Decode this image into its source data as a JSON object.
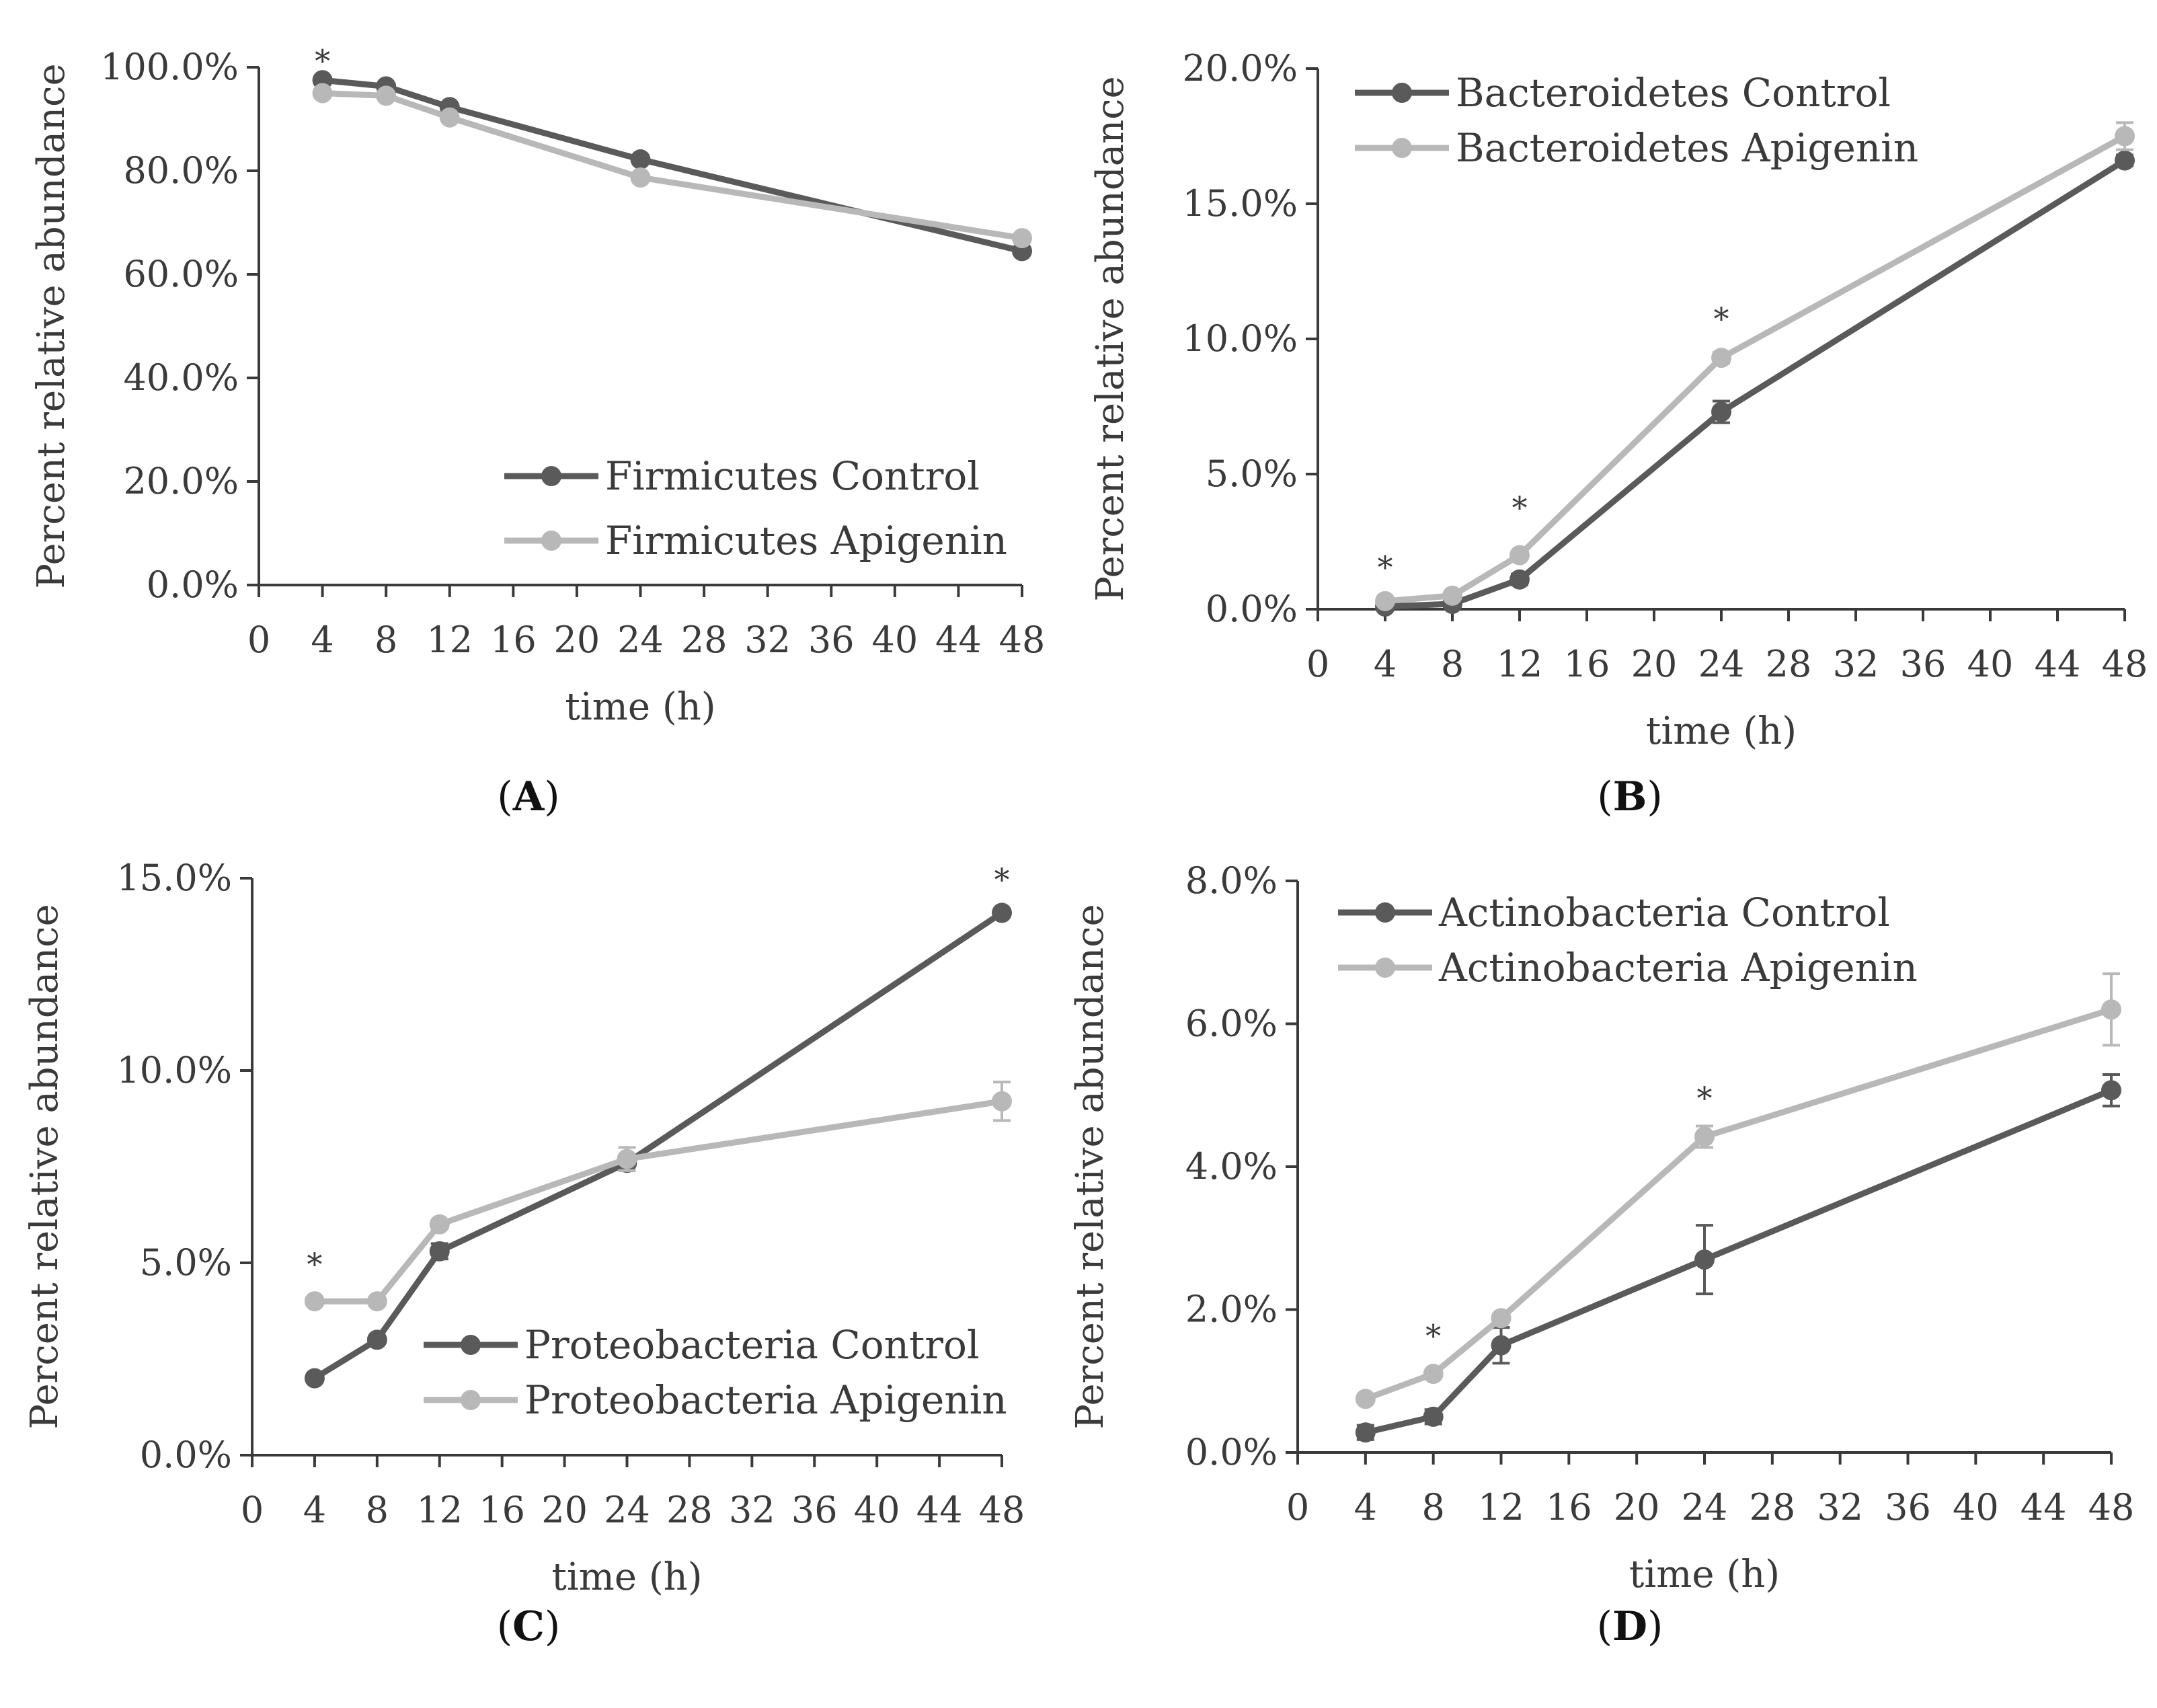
{
  "chart_data": [
    {
      "type": "line",
      "panel": "A",
      "panel_label": "A",
      "xlabel": "time (h)",
      "ylabel": "Percent relative abundance",
      "xlim": [
        0,
        48
      ],
      "xticks": [
        0,
        4,
        8,
        12,
        16,
        20,
        24,
        28,
        32,
        36,
        40,
        44,
        48
      ],
      "ylim": [
        0,
        100
      ],
      "yticks": [
        0,
        20,
        40,
        60,
        80,
        100
      ],
      "ytick_labels": [
        "0.0%",
        "20.0%",
        "40.0%",
        "60.0%",
        "80.0%",
        "100.0%"
      ],
      "legend_position": "bottom-right",
      "grid": false,
      "x": [
        4,
        8,
        12,
        24,
        48
      ],
      "series": [
        {
          "name": "Firmicutes Control",
          "color": "#5a5a5a",
          "values": [
            97.5,
            96.3,
            92.3,
            82.2,
            64.5
          ],
          "errors": [
            0.5,
            0.5,
            0.5,
            0.5,
            0.5
          ]
        },
        {
          "name": "Firmicutes Apigenin",
          "color": "#b8b8b8",
          "values": [
            95.0,
            94.5,
            90.3,
            78.7,
            67.0
          ],
          "errors": [
            0.5,
            0.5,
            0.5,
            0.5,
            0.5
          ]
        }
      ],
      "significance": [
        {
          "x": 4,
          "y": 101.5,
          "label": "*"
        }
      ]
    },
    {
      "type": "line",
      "panel": "B",
      "panel_label": "B",
      "xlabel": "time (h)",
      "ylabel": "Percent relative abundance",
      "xlim": [
        0,
        48
      ],
      "xticks": [
        0,
        4,
        8,
        12,
        16,
        20,
        24,
        28,
        32,
        36,
        40,
        44,
        48
      ],
      "ylim": [
        0,
        20
      ],
      "yticks": [
        0,
        5,
        10,
        15,
        20
      ],
      "ytick_labels": [
        "0.0%",
        "5.0%",
        "10.0%",
        "15.0%",
        "20.0%"
      ],
      "legend_position": "top-left",
      "grid": false,
      "x": [
        4,
        8,
        12,
        24,
        48
      ],
      "series": [
        {
          "name": "Bacteroidetes Control",
          "color": "#5a5a5a",
          "values": [
            0.1,
            0.2,
            1.1,
            7.3,
            16.6
          ],
          "errors": [
            0.05,
            0.05,
            0.2,
            0.4,
            0.2
          ]
        },
        {
          "name": "Bacteroidetes Apigenin",
          "color": "#b8b8b8",
          "values": [
            0.3,
            0.5,
            2.0,
            9.3,
            17.5
          ],
          "errors": [
            0.05,
            0.05,
            0.1,
            0.2,
            0.5
          ]
        }
      ],
      "significance": [
        {
          "x": 4,
          "y": 1.6,
          "label": "*"
        },
        {
          "x": 12,
          "y": 3.8,
          "label": "*"
        },
        {
          "x": 24,
          "y": 10.8,
          "label": "*"
        }
      ]
    },
    {
      "type": "line",
      "panel": "C",
      "panel_label": "C",
      "xlabel": "time (h)",
      "ylabel": "Percent relative abundance",
      "xlim": [
        0,
        48
      ],
      "xticks": [
        0,
        4,
        8,
        12,
        16,
        20,
        24,
        28,
        32,
        36,
        40,
        44,
        48
      ],
      "ylim": [
        0,
        15
      ],
      "yticks": [
        0,
        5,
        10,
        15
      ],
      "ytick_labels": [
        "0.0%",
        "5.0%",
        "10.0%",
        "15.0%"
      ],
      "legend_position": "bottom-right",
      "grid": false,
      "x": [
        4,
        8,
        12,
        24,
        48
      ],
      "series": [
        {
          "name": "Proteobacteria Control",
          "color": "#5a5a5a",
          "values": [
            2.0,
            3.0,
            5.3,
            7.6,
            14.1
          ],
          "errors": [
            0.1,
            0.1,
            0.2,
            0.2,
            0.1
          ]
        },
        {
          "name": "Proteobacteria Apigenin",
          "color": "#b8b8b8",
          "values": [
            4.0,
            4.0,
            6.0,
            7.7,
            9.2
          ],
          "errors": [
            0.1,
            0.1,
            0.1,
            0.3,
            0.5
          ]
        }
      ],
      "significance": [
        {
          "x": 4,
          "y": 5.0,
          "label": "*"
        },
        {
          "x": 48,
          "y": 15.0,
          "label": "*"
        }
      ]
    },
    {
      "type": "line",
      "panel": "D",
      "panel_label": "D",
      "xlabel": "time (h)",
      "ylabel": "Percent relative abundance",
      "xlim": [
        0,
        48
      ],
      "xticks": [
        0,
        4,
        8,
        12,
        16,
        20,
        24,
        28,
        32,
        36,
        40,
        44,
        48
      ],
      "ylim": [
        0,
        8
      ],
      "yticks": [
        0,
        2,
        4,
        6,
        8
      ],
      "ytick_labels": [
        "0.0%",
        "2.0%",
        "4.0%",
        "6.0%",
        "8.0%"
      ],
      "legend_position": "top-left",
      "grid": false,
      "x": [
        4,
        8,
        12,
        24,
        48
      ],
      "series": [
        {
          "name": "Actinobacteria Control",
          "color": "#5a5a5a",
          "values": [
            0.28,
            0.5,
            1.5,
            2.7,
            5.07
          ],
          "errors": [
            0.1,
            0.1,
            0.25,
            0.48,
            0.22
          ]
        },
        {
          "name": "Actinobacteria Apigenin",
          "color": "#b8b8b8",
          "values": [
            0.75,
            1.1,
            1.88,
            4.42,
            6.2
          ],
          "errors": [
            0.05,
            0.05,
            0.05,
            0.15,
            0.5
          ]
        }
      ],
      "significance": [
        {
          "x": 8,
          "y": 1.65,
          "label": "*"
        },
        {
          "x": 24,
          "y": 4.98,
          "label": "*"
        }
      ]
    }
  ]
}
